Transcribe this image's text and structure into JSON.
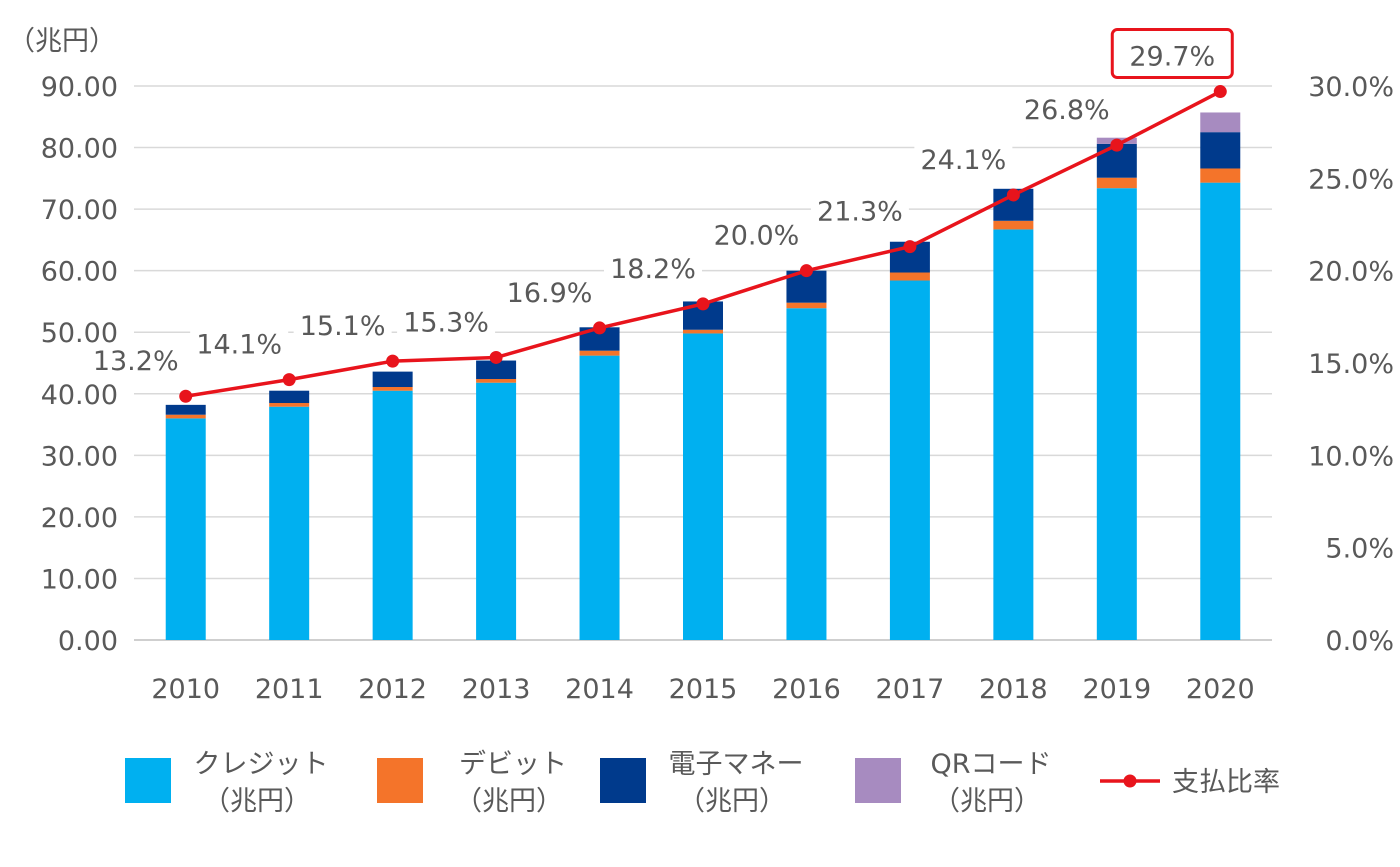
{
  "chart_data": {
    "type": "bar",
    "stacked": true,
    "unit_label": "（兆円）",
    "categories": [
      "2010",
      "2011",
      "2012",
      "2013",
      "2014",
      "2015",
      "2016",
      "2017",
      "2018",
      "2019",
      "2020"
    ],
    "series": [
      {
        "name": "クレジット",
        "unit": "（兆円）",
        "color": "#00b0f0",
        "values": [
          36.0,
          37.9,
          40.5,
          41.8,
          46.2,
          49.8,
          53.9,
          58.4,
          66.7,
          73.4,
          74.3
        ]
      },
      {
        "name": "デビット",
        "unit": "（兆円）",
        "color": "#f4742a",
        "values": [
          0.6,
          0.6,
          0.6,
          0.6,
          0.8,
          0.6,
          0.9,
          1.3,
          1.4,
          1.7,
          2.3
        ]
      },
      {
        "name": "電子マネー",
        "unit": "（兆円）",
        "color": "#003a8c",
        "values": [
          1.6,
          2.0,
          2.5,
          3.0,
          3.8,
          4.6,
          5.2,
          5.0,
          5.2,
          5.5,
          5.9
        ]
      },
      {
        "name": "QRコード",
        "unit": "（兆円）",
        "color": "#a78bc0",
        "values": [
          0,
          0,
          0,
          0,
          0,
          0,
          0,
          0,
          0,
          1.0,
          3.2
        ]
      }
    ],
    "line": {
      "name": "支払比率",
      "color": "#e8141c",
      "values": [
        13.2,
        14.1,
        15.1,
        15.3,
        16.9,
        18.2,
        20.0,
        21.3,
        24.1,
        26.8,
        29.7
      ],
      "labels": [
        "13.2%",
        "14.1%",
        "15.1%",
        "15.3%",
        "16.9%",
        "18.2%",
        "20.0%",
        "21.3%",
        "24.1%",
        "26.8%",
        "29.7%"
      ],
      "highlight_index": 10
    },
    "left_axis": {
      "min": 0,
      "max": 90,
      "step": 10,
      "ticks": [
        "0.00",
        "10.00",
        "20.00",
        "30.00",
        "40.00",
        "50.00",
        "60.00",
        "70.00",
        "80.00",
        "90.00"
      ]
    },
    "right_axis": {
      "min": 0,
      "max": 30,
      "step": 5,
      "ticks": [
        "0.0%",
        "5.0%",
        "10.0%",
        "15.0%",
        "20.0%",
        "25.0%",
        "30.0%"
      ]
    },
    "grid": true,
    "legend_position": "bottom"
  }
}
